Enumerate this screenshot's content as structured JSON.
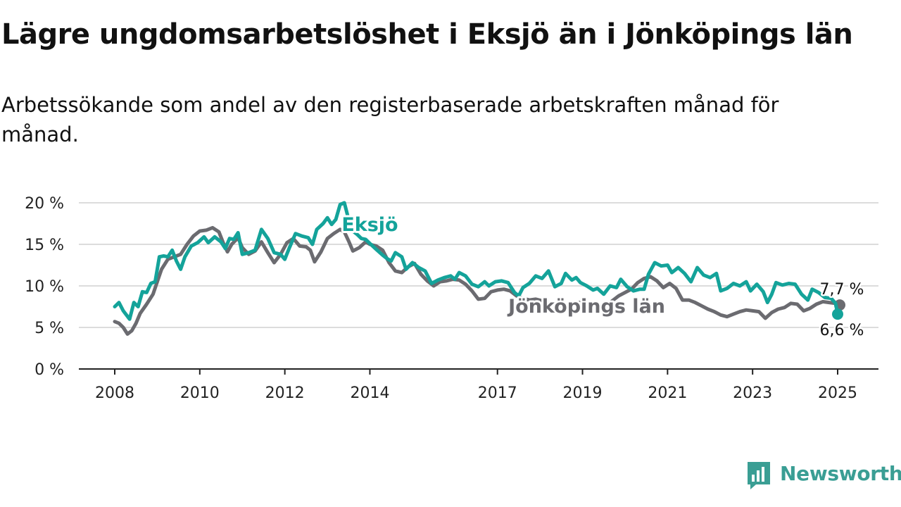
{
  "title": "Lägre ungdomsarbetslöshet i Eksjö än i Jönköpings län",
  "subtitle": "Arbetssökande som andel av den registerbaserade arbetskraften månad för månad.",
  "brand": {
    "name": "Newsworthy",
    "icon": "newsworthy-logo-icon",
    "color": "#3a9e94"
  },
  "chart_data": {
    "type": "line",
    "title": "Lägre ungdomsarbetslöshet i Eksjö än i Jönköpings län",
    "subtitle": "Arbetssökande som andel av den registerbaserade arbetskraften månad för månad.",
    "ylim": [
      0,
      20
    ],
    "yticks": [
      0,
      5,
      10,
      15,
      20
    ],
    "ytick_labels": [
      "0 %",
      "5 %",
      "10 %",
      "15 %",
      "20 %"
    ],
    "xlim": [
      2008,
      2025.9
    ],
    "xticks": [
      2008,
      2010,
      2012,
      2014,
      2017,
      2019,
      2021,
      2023,
      2025
    ],
    "xtick_labels": [
      "2008",
      "2010",
      "2012",
      "2014",
      "2017",
      "2019",
      "2021",
      "2023",
      "2025"
    ],
    "grid": true,
    "series": [
      {
        "name": "Eksjö",
        "color": "#14a39a",
        "end_label": "6,6 %",
        "points": [
          [
            2008.0,
            7.5
          ],
          [
            2008.1,
            8.0
          ],
          [
            2008.2,
            7.0
          ],
          [
            2008.35,
            6.0
          ],
          [
            2008.45,
            8.0
          ],
          [
            2008.55,
            7.5
          ],
          [
            2008.65,
            9.3
          ],
          [
            2008.75,
            9.2
          ],
          [
            2008.85,
            10.3
          ],
          [
            2008.95,
            10.5
          ],
          [
            2009.05,
            13.5
          ],
          [
            2009.15,
            13.6
          ],
          [
            2009.25,
            13.5
          ],
          [
            2009.35,
            14.3
          ],
          [
            2009.45,
            13.0
          ],
          [
            2009.55,
            12.0
          ],
          [
            2009.65,
            13.5
          ],
          [
            2009.8,
            14.8
          ],
          [
            2009.95,
            15.2
          ],
          [
            2010.1,
            15.9
          ],
          [
            2010.2,
            15.2
          ],
          [
            2010.35,
            15.9
          ],
          [
            2010.5,
            15.3
          ],
          [
            2010.6,
            14.5
          ],
          [
            2010.7,
            15.7
          ],
          [
            2010.8,
            15.6
          ],
          [
            2010.9,
            16.4
          ],
          [
            2011.0,
            13.8
          ],
          [
            2011.15,
            14.0
          ],
          [
            2011.3,
            14.3
          ],
          [
            2011.45,
            16.8
          ],
          [
            2011.6,
            15.7
          ],
          [
            2011.75,
            14.0
          ],
          [
            2011.9,
            13.8
          ],
          [
            2012.0,
            13.2
          ],
          [
            2012.1,
            14.5
          ],
          [
            2012.25,
            16.3
          ],
          [
            2012.4,
            16.0
          ],
          [
            2012.55,
            15.8
          ],
          [
            2012.65,
            15.0
          ],
          [
            2012.75,
            16.8
          ],
          [
            2012.9,
            17.5
          ],
          [
            2013.0,
            18.2
          ],
          [
            2013.1,
            17.4
          ],
          [
            2013.2,
            18.0
          ],
          [
            2013.3,
            19.8
          ],
          [
            2013.4,
            20.0
          ],
          [
            2013.5,
            18.0
          ],
          [
            2013.6,
            16.6
          ],
          [
            2013.7,
            16.2
          ],
          [
            2013.8,
            15.7
          ],
          [
            2013.9,
            15.6
          ],
          [
            2014.0,
            15.1
          ],
          [
            2014.15,
            14.4
          ],
          [
            2014.3,
            13.7
          ],
          [
            2014.4,
            13.3
          ],
          [
            2014.5,
            13.0
          ],
          [
            2014.6,
            14.0
          ],
          [
            2014.75,
            13.5
          ],
          [
            2014.85,
            12.0
          ],
          [
            2015.0,
            12.8
          ],
          [
            2015.15,
            12.2
          ],
          [
            2015.3,
            11.8
          ],
          [
            2015.45,
            10.3
          ],
          [
            2015.6,
            10.7
          ],
          [
            2015.75,
            11.0
          ],
          [
            2015.9,
            11.2
          ],
          [
            2016.0,
            10.8
          ],
          [
            2016.1,
            11.6
          ],
          [
            2016.25,
            11.2
          ],
          [
            2016.4,
            10.2
          ],
          [
            2016.55,
            9.9
          ],
          [
            2016.7,
            10.5
          ],
          [
            2016.8,
            10.0
          ],
          [
            2016.95,
            10.5
          ],
          [
            2017.1,
            10.6
          ],
          [
            2017.25,
            10.4
          ],
          [
            2017.4,
            9.2
          ],
          [
            2017.5,
            8.8
          ],
          [
            2017.6,
            9.8
          ],
          [
            2017.75,
            10.3
          ],
          [
            2017.9,
            11.2
          ],
          [
            2018.05,
            10.9
          ],
          [
            2018.2,
            11.8
          ],
          [
            2018.35,
            9.9
          ],
          [
            2018.5,
            10.3
          ],
          [
            2018.6,
            11.5
          ],
          [
            2018.75,
            10.7
          ],
          [
            2018.85,
            11.0
          ],
          [
            2018.95,
            10.4
          ],
          [
            2019.1,
            10.0
          ],
          [
            2019.25,
            9.5
          ],
          [
            2019.35,
            9.7
          ],
          [
            2019.5,
            9.0
          ],
          [
            2019.65,
            10.0
          ],
          [
            2019.8,
            9.8
          ],
          [
            2019.9,
            10.8
          ],
          [
            2020.05,
            9.9
          ],
          [
            2020.2,
            9.4
          ],
          [
            2020.35,
            9.6
          ],
          [
            2020.45,
            9.6
          ],
          [
            2020.55,
            11.4
          ],
          [
            2020.7,
            12.8
          ],
          [
            2020.85,
            12.4
          ],
          [
            2021.0,
            12.5
          ],
          [
            2021.1,
            11.6
          ],
          [
            2021.25,
            12.2
          ],
          [
            2021.4,
            11.5
          ],
          [
            2021.55,
            10.5
          ],
          [
            2021.7,
            12.2
          ],
          [
            2021.85,
            11.3
          ],
          [
            2022.0,
            11.0
          ],
          [
            2022.15,
            11.5
          ],
          [
            2022.25,
            9.4
          ],
          [
            2022.4,
            9.7
          ],
          [
            2022.55,
            10.3
          ],
          [
            2022.7,
            10.0
          ],
          [
            2022.85,
            10.5
          ],
          [
            2022.95,
            9.4
          ],
          [
            2023.1,
            10.2
          ],
          [
            2023.25,
            9.3
          ],
          [
            2023.35,
            8.0
          ],
          [
            2023.45,
            9.0
          ],
          [
            2023.55,
            10.4
          ],
          [
            2023.7,
            10.1
          ],
          [
            2023.85,
            10.3
          ],
          [
            2024.0,
            10.2
          ],
          [
            2024.15,
            9.0
          ],
          [
            2024.3,
            8.3
          ],
          [
            2024.4,
            9.6
          ],
          [
            2024.55,
            9.2
          ],
          [
            2024.7,
            8.6
          ],
          [
            2024.85,
            8.5
          ],
          [
            2024.95,
            7.9
          ],
          [
            2025.0,
            6.6
          ]
        ]
      },
      {
        "name": "Jönköpings län",
        "color": "#6b6b70",
        "end_label": "7,7 %",
        "points": [
          [
            2008.0,
            5.7
          ],
          [
            2008.1,
            5.5
          ],
          [
            2008.2,
            5.0
          ],
          [
            2008.3,
            4.2
          ],
          [
            2008.4,
            4.6
          ],
          [
            2008.5,
            5.5
          ],
          [
            2008.6,
            6.7
          ],
          [
            2008.75,
            7.8
          ],
          [
            2008.9,
            9.0
          ],
          [
            2009.0,
            10.5
          ],
          [
            2009.1,
            12.0
          ],
          [
            2009.25,
            13.2
          ],
          [
            2009.4,
            13.5
          ],
          [
            2009.55,
            13.8
          ],
          [
            2009.7,
            15.0
          ],
          [
            2009.85,
            16.0
          ],
          [
            2010.0,
            16.6
          ],
          [
            2010.15,
            16.7
          ],
          [
            2010.3,
            17.0
          ],
          [
            2010.45,
            16.5
          ],
          [
            2010.55,
            15.2
          ],
          [
            2010.65,
            14.1
          ],
          [
            2010.75,
            15.0
          ],
          [
            2010.9,
            15.8
          ],
          [
            2011.0,
            14.6
          ],
          [
            2011.15,
            13.8
          ],
          [
            2011.3,
            14.2
          ],
          [
            2011.45,
            15.3
          ],
          [
            2011.6,
            14.0
          ],
          [
            2011.75,
            12.8
          ],
          [
            2011.9,
            13.8
          ],
          [
            2012.05,
            15.2
          ],
          [
            2012.2,
            15.7
          ],
          [
            2012.35,
            14.8
          ],
          [
            2012.5,
            14.7
          ],
          [
            2012.6,
            14.3
          ],
          [
            2012.7,
            12.9
          ],
          [
            2012.85,
            14.1
          ],
          [
            2013.0,
            15.7
          ],
          [
            2013.15,
            16.3
          ],
          [
            2013.3,
            16.8
          ],
          [
            2013.4,
            16.5
          ],
          [
            2013.5,
            15.4
          ],
          [
            2013.6,
            14.2
          ],
          [
            2013.75,
            14.6
          ],
          [
            2013.9,
            15.3
          ],
          [
            2014.0,
            15.0
          ],
          [
            2014.15,
            14.8
          ],
          [
            2014.3,
            14.3
          ],
          [
            2014.45,
            12.8
          ],
          [
            2014.6,
            11.8
          ],
          [
            2014.75,
            11.6
          ],
          [
            2014.9,
            12.3
          ],
          [
            2015.05,
            12.7
          ],
          [
            2015.2,
            11.4
          ],
          [
            2015.35,
            10.6
          ],
          [
            2015.5,
            10.0
          ],
          [
            2015.65,
            10.5
          ],
          [
            2015.8,
            10.6
          ],
          [
            2015.95,
            10.8
          ],
          [
            2016.1,
            10.7
          ],
          [
            2016.25,
            10.2
          ],
          [
            2016.4,
            9.4
          ],
          [
            2016.55,
            8.4
          ],
          [
            2016.7,
            8.5
          ],
          [
            2016.85,
            9.3
          ],
          [
            2017.0,
            9.5
          ],
          [
            2017.15,
            9.6
          ],
          [
            2017.3,
            9.4
          ],
          [
            2017.45,
            8.8
          ],
          [
            2017.6,
            8.5
          ],
          [
            2017.75,
            8.3
          ],
          [
            2017.9,
            8.4
          ],
          [
            2018.05,
            8.2
          ],
          [
            2018.2,
            7.9
          ],
          [
            2018.35,
            7.7
          ],
          [
            2018.5,
            7.6
          ],
          [
            2018.65,
            7.6
          ],
          [
            2018.8,
            8.0
          ],
          [
            2018.95,
            8.0
          ],
          [
            2019.1,
            7.2
          ],
          [
            2019.25,
            7.0
          ],
          [
            2019.4,
            7.3
          ],
          [
            2019.55,
            7.5
          ],
          [
            2019.7,
            8.2
          ],
          [
            2019.85,
            8.8
          ],
          [
            2020.0,
            9.2
          ],
          [
            2020.15,
            9.6
          ],
          [
            2020.3,
            10.4
          ],
          [
            2020.45,
            10.9
          ],
          [
            2020.6,
            11.1
          ],
          [
            2020.75,
            10.6
          ],
          [
            2020.9,
            9.8
          ],
          [
            2021.05,
            10.3
          ],
          [
            2021.2,
            9.7
          ],
          [
            2021.35,
            8.3
          ],
          [
            2021.5,
            8.3
          ],
          [
            2021.65,
            8.0
          ],
          [
            2021.8,
            7.6
          ],
          [
            2021.95,
            7.2
          ],
          [
            2022.1,
            6.9
          ],
          [
            2022.25,
            6.5
          ],
          [
            2022.4,
            6.3
          ],
          [
            2022.55,
            6.6
          ],
          [
            2022.7,
            6.9
          ],
          [
            2022.85,
            7.1
          ],
          [
            2023.0,
            7.0
          ],
          [
            2023.15,
            6.9
          ],
          [
            2023.3,
            6.1
          ],
          [
            2023.45,
            6.8
          ],
          [
            2023.6,
            7.2
          ],
          [
            2023.75,
            7.4
          ],
          [
            2023.9,
            7.9
          ],
          [
            2024.05,
            7.8
          ],
          [
            2024.2,
            7.0
          ],
          [
            2024.35,
            7.3
          ],
          [
            2024.5,
            7.8
          ],
          [
            2024.65,
            8.1
          ],
          [
            2024.8,
            8.0
          ],
          [
            2024.95,
            7.9
          ],
          [
            2025.05,
            7.7
          ]
        ]
      }
    ],
    "annotations": [
      {
        "text": "Eksjö",
        "series": "Eksjö",
        "x": 2014.0,
        "y": 16.6
      },
      {
        "text": "Jönköpings län",
        "series": "Jönköpings län",
        "x": 2019.1,
        "y": 6.8
      }
    ]
  }
}
